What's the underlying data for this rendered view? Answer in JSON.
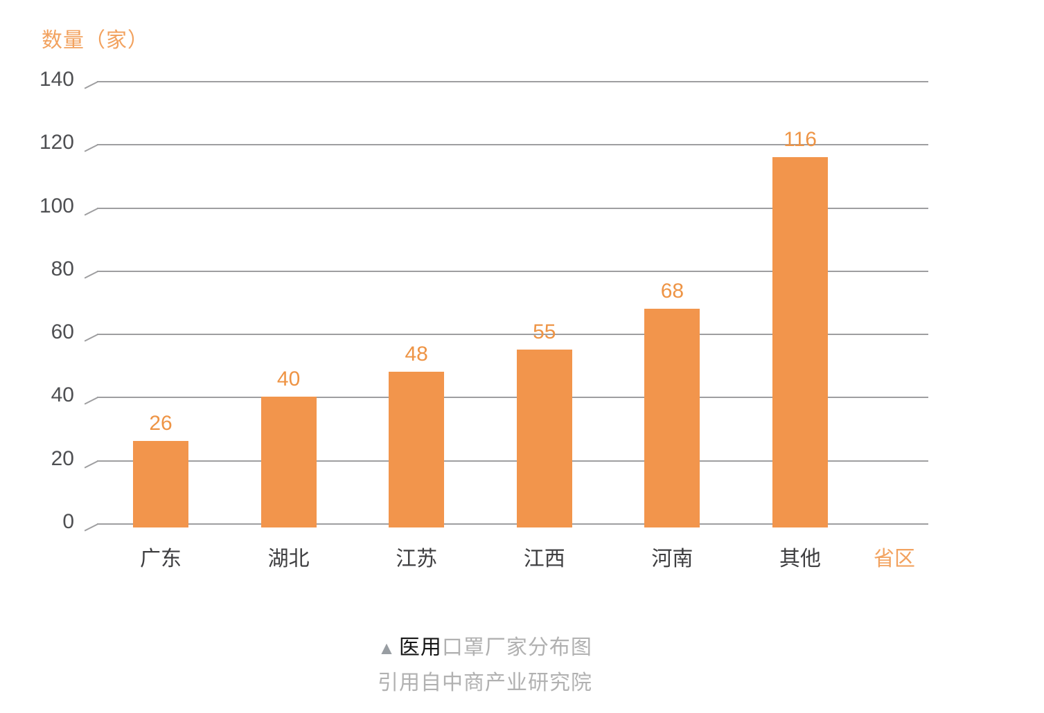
{
  "chart_data": {
    "type": "bar",
    "title": "医用口罩厂家分布图",
    "categories": [
      "广东",
      "湖北",
      "江苏",
      "江西",
      "河南",
      "其他"
    ],
    "values": [
      26,
      40,
      48,
      55,
      68,
      116
    ],
    "ylabel": "数量（家）",
    "xlabel": "省区",
    "ylim": [
      0,
      140
    ],
    "yticks": [
      0,
      20,
      40,
      60,
      80,
      100,
      120,
      140
    ],
    "grid": true,
    "legend": "none",
    "bar_color": "#F2954C",
    "value_label_color": "#EE9445",
    "grid_color": "#9E9EA0",
    "tick_label_color": "#4E4F52",
    "category_label_color": "#3E3E40",
    "axis_title_color": "#F2A25F"
  },
  "caption": {
    "triangle": "▲",
    "prefix": "医用",
    "rest": "口罩厂家分布图",
    "source": "引用自中商产业研究院"
  }
}
